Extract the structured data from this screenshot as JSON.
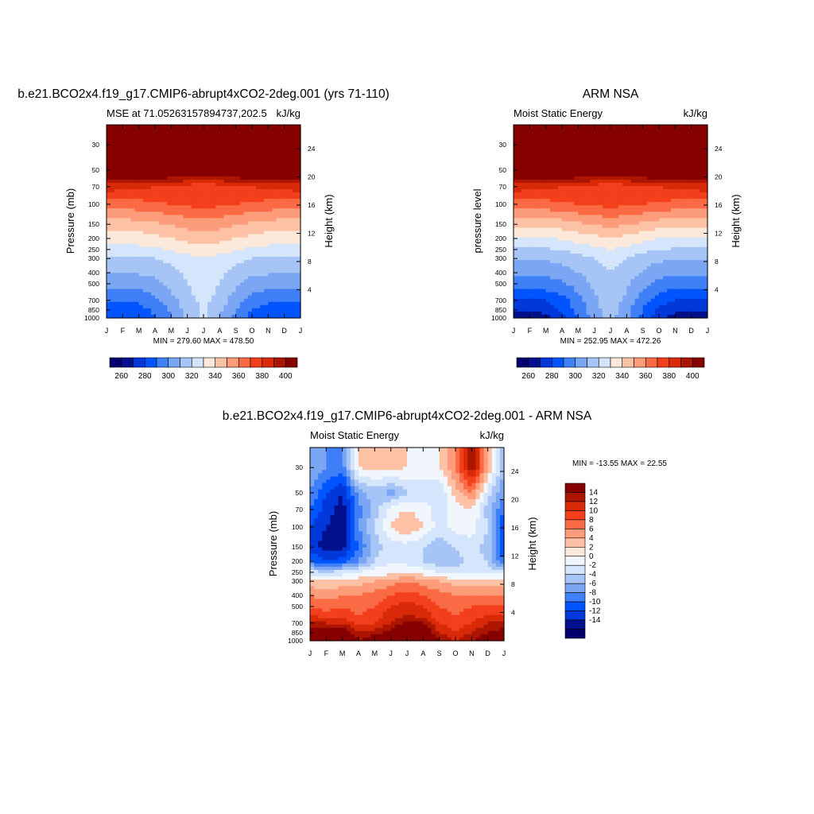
{
  "chart_data": [
    {
      "type": "heatmap",
      "title": "b.e21.BCO2x4.f19_g17.CMIP6-abrupt4xCO2-2deg.001 (yrs 71-110)",
      "left_string": "MSE at 71.05263157894737,202.5",
      "right_string": "kJ/kg",
      "xlabel": "",
      "ylabel": "Pressure (mb)",
      "y2label": "Height (km)",
      "x": [
        "J",
        "F",
        "M",
        "A",
        "M",
        "J",
        "J",
        "A",
        "S",
        "O",
        "N",
        "D",
        "J"
      ],
      "y_ticks": [
        30,
        50,
        70,
        100,
        150,
        200,
        250,
        300,
        400,
        500,
        700,
        850,
        1000
      ],
      "y2_ticks": [
        4,
        8,
        12,
        16,
        20,
        24
      ],
      "ylim": [
        1000,
        20
      ],
      "ylog": true,
      "stats": "MIN = 279.60 MAX = 478.50",
      "levels": [
        260,
        270,
        280,
        290,
        300,
        310,
        320,
        330,
        340,
        350,
        360,
        370,
        380,
        390,
        400
      ],
      "colorbar_labels": [
        "260",
        "280",
        "300",
        "320",
        "340",
        "360",
        "380",
        "400"
      ],
      "z_rows": [
        [
          280,
          280,
          282,
          290,
          300,
          312,
          322,
          310,
          296,
          286,
          282,
          280,
          280
        ],
        [
          284,
          284,
          286,
          292,
          302,
          314,
          322,
          312,
          300,
          290,
          286,
          284,
          284
        ],
        [
          290,
          290,
          292,
          298,
          306,
          316,
          323,
          316,
          304,
          296,
          292,
          290,
          290
        ],
        [
          296,
          296,
          298,
          302,
          310,
          318,
          324,
          318,
          308,
          300,
          298,
          296,
          296
        ],
        [
          303,
          303,
          304,
          307,
          313,
          320,
          325,
          320,
          312,
          306,
          304,
          303,
          303
        ],
        [
          310,
          310,
          311,
          313,
          317,
          322,
          326,
          322,
          316,
          312,
          311,
          310,
          310
        ],
        [
          318,
          318,
          319,
          320,
          323,
          327,
          330,
          327,
          323,
          320,
          319,
          318,
          318
        ],
        [
          326,
          326,
          327,
          328,
          331,
          334,
          337,
          334,
          331,
          328,
          327,
          326,
          326
        ],
        [
          334,
          334,
          335,
          337,
          340,
          343,
          346,
          343,
          340,
          337,
          335,
          334,
          334
        ],
        [
          345,
          345,
          346,
          348,
          351,
          354,
          356,
          354,
          351,
          348,
          346,
          345,
          345
        ],
        [
          365,
          365,
          366,
          368,
          370,
          372,
          374,
          372,
          370,
          368,
          366,
          365,
          365
        ],
        [
          385,
          384,
          383,
          380,
          377,
          374,
          372,
          374,
          377,
          380,
          383,
          384,
          385
        ],
        [
          420,
          420,
          420,
          420,
          420,
          420,
          420,
          420,
          420,
          420,
          420,
          420,
          420
        ],
        [
          450,
          450,
          450,
          450,
          450,
          450,
          450,
          450,
          450,
          450,
          450,
          450,
          450
        ]
      ],
      "z_pressure": [
        1000,
        850,
        700,
        600,
        500,
        400,
        300,
        250,
        200,
        150,
        100,
        70,
        50,
        30
      ]
    },
    {
      "type": "heatmap",
      "title": "ARM NSA",
      "left_string": "Moist Static Energy",
      "right_string": "kJ/kg",
      "xlabel": "",
      "ylabel": "pressure level",
      "y2label": "Height (km)",
      "x": [
        "J",
        "F",
        "M",
        "A",
        "M",
        "J",
        "J",
        "A",
        "S",
        "O",
        "N",
        "D",
        "J"
      ],
      "y_ticks": [
        30,
        50,
        70,
        100,
        150,
        200,
        250,
        300,
        400,
        500,
        700,
        850,
        1000
      ],
      "y2_ticks": [
        4,
        8,
        12,
        16,
        20,
        24
      ],
      "ylim": [
        1000,
        20
      ],
      "ylog": true,
      "stats": "MIN = 252.95 MAX = 472.26",
      "levels": [
        260,
        270,
        280,
        290,
        300,
        310,
        320,
        330,
        340,
        350,
        360,
        370,
        380,
        390,
        400
      ],
      "colorbar_labels": [
        "260",
        "280",
        "300",
        "320",
        "340",
        "360",
        "380",
        "400"
      ],
      "z_rows": [
        [
          262,
          262,
          266,
          276,
          290,
          304,
          314,
          302,
          286,
          272,
          266,
          262,
          262
        ],
        [
          270,
          270,
          274,
          282,
          294,
          306,
          316,
          304,
          290,
          278,
          272,
          270,
          270
        ],
        [
          278,
          278,
          280,
          286,
          296,
          308,
          317,
          306,
          294,
          284,
          280,
          278,
          278
        ],
        [
          286,
          286,
          288,
          292,
          300,
          310,
          318,
          310,
          298,
          290,
          287,
          286,
          286
        ],
        [
          294,
          294,
          295,
          298,
          304,
          312,
          319,
          312,
          303,
          296,
          295,
          294,
          294
        ],
        [
          302,
          302,
          303,
          306,
          310,
          315,
          320,
          315,
          309,
          304,
          303,
          302,
          302
        ],
        [
          310,
          310,
          311,
          313,
          316,
          320,
          324,
          320,
          315,
          312,
          311,
          310,
          310
        ],
        [
          318,
          318,
          319,
          321,
          324,
          327,
          330,
          327,
          323,
          320,
          319,
          318,
          318
        ],
        [
          328,
          328,
          329,
          331,
          334,
          337,
          340,
          337,
          333,
          330,
          329,
          328,
          328
        ],
        [
          342,
          342,
          343,
          345,
          348,
          351,
          353,
          351,
          348,
          345,
          343,
          342,
          342
        ],
        [
          365,
          365,
          366,
          368,
          370,
          372,
          374,
          372,
          370,
          368,
          366,
          365,
          365
        ],
        [
          385,
          384,
          383,
          380,
          377,
          374,
          372,
          374,
          377,
          380,
          383,
          384,
          385
        ],
        [
          420,
          420,
          420,
          420,
          420,
          420,
          420,
          420,
          420,
          420,
          420,
          420,
          420
        ],
        [
          450,
          450,
          450,
          450,
          450,
          450,
          450,
          450,
          450,
          450,
          450,
          450,
          450
        ]
      ],
      "z_pressure": [
        1000,
        850,
        700,
        600,
        500,
        400,
        300,
        250,
        200,
        150,
        100,
        70,
        50,
        30
      ]
    },
    {
      "type": "heatmap",
      "title": "b.e21.BCO2x4.f19_g17.CMIP6-abrupt4xCO2-2deg.001 - ARM NSA",
      "left_string": "Moist Static Energy",
      "right_string": "kJ/kg",
      "xlabel": "",
      "ylabel": "Pressure (mb)",
      "y2label": "Height (km)",
      "x": [
        "J",
        "F",
        "M",
        "A",
        "M",
        "J",
        "J",
        "A",
        "S",
        "O",
        "N",
        "D",
        "J"
      ],
      "y_ticks": [
        30,
        50,
        70,
        100,
        150,
        200,
        250,
        300,
        400,
        500,
        700,
        850,
        1000
      ],
      "y2_ticks": [
        4,
        8,
        12,
        16,
        20,
        24
      ],
      "ylim": [
        1000,
        20
      ],
      "ylog": true,
      "stats": "MIN = -13.55 MAX =  22.55",
      "levels": [
        -14,
        -12,
        -10,
        -8,
        -6,
        -4,
        -2,
        0,
        2,
        4,
        6,
        8,
        10,
        12,
        14
      ],
      "colorbar_labels": [
        "14",
        "12",
        "10",
        "8",
        "6",
        "4",
        "2",
        "0",
        "-2",
        "-4",
        "-6",
        "-8",
        "-10",
        "-12",
        "-14"
      ],
      "z_rows": [
        [
          18,
          20,
          22,
          14,
          16,
          18,
          22,
          20,
          14,
          12,
          14,
          16,
          18
        ],
        [
          15,
          16,
          16,
          12,
          13,
          15,
          18,
          17,
          12,
          10,
          12,
          14,
          15
        ],
        [
          13,
          12,
          12,
          9,
          10,
          12,
          15,
          14,
          10,
          9,
          10,
          12,
          13
        ],
        [
          10,
          9,
          9,
          8,
          9,
          11,
          12,
          11,
          9,
          8,
          9,
          10,
          10
        ],
        [
          8,
          7,
          8,
          7,
          8,
          10,
          11,
          10,
          8,
          7,
          8,
          8,
          8
        ],
        [
          6,
          5,
          6,
          6,
          7,
          8,
          9,
          8,
          7,
          6,
          6,
          6,
          6
        ],
        [
          3,
          2,
          3,
          3,
          4,
          5,
          6,
          5,
          4,
          3,
          3,
          3,
          3
        ],
        [
          -1,
          -2,
          -1,
          0,
          1,
          1,
          2,
          1,
          0,
          -1,
          -1,
          -1,
          -1
        ],
        [
          -8,
          -10,
          -9,
          -6,
          -2,
          0,
          -1,
          -2,
          -4,
          -3,
          -1,
          -2,
          -8
        ],
        [
          -11,
          -13,
          -13,
          -8,
          -3,
          -1,
          -1,
          -2,
          -3,
          -2,
          -1,
          -3,
          -11
        ],
        [
          -10,
          -12,
          -13,
          -6,
          -2,
          2,
          4,
          2,
          -1,
          1,
          1,
          -2,
          -10
        ],
        [
          -8,
          -11,
          -13,
          -7,
          -3,
          1,
          2,
          1,
          -1,
          1,
          2,
          -3,
          -8
        ],
        [
          -6,
          -10,
          -12,
          -5,
          -3,
          -5,
          -2,
          -1,
          -2,
          3,
          6,
          -1,
          -6
        ],
        [
          -4,
          -6,
          -7,
          2,
          3,
          3,
          2,
          1,
          2,
          6,
          14,
          4,
          -4
        ]
      ],
      "z_pressure": [
        1000,
        850,
        700,
        600,
        500,
        400,
        300,
        250,
        200,
        150,
        100,
        70,
        50,
        30
      ]
    }
  ],
  "colors": {
    "blue_red": [
      "#03006d",
      "#02108c",
      "#0038d9",
      "#0055ff",
      "#3f7ff7",
      "#7ba6f3",
      "#a6c4f5",
      "#d5e5fb",
      "#fde9d9",
      "#fdc2a6",
      "#fc9c7a",
      "#fa6b45",
      "#f33f1b",
      "#d82a09",
      "#ac1500",
      "#860000"
    ],
    "diff": [
      "#03006d",
      "#02108c",
      "#0038d9",
      "#0055ff",
      "#3f7ff7",
      "#7ba6f3",
      "#a6c4f5",
      "#d5e5fb",
      "#f1f6fd",
      "#fde9d9",
      "#fdc2a6",
      "#fc9c7a",
      "#fa6b45",
      "#f33f1b",
      "#d82a09",
      "#ac1500",
      "#860000"
    ]
  }
}
